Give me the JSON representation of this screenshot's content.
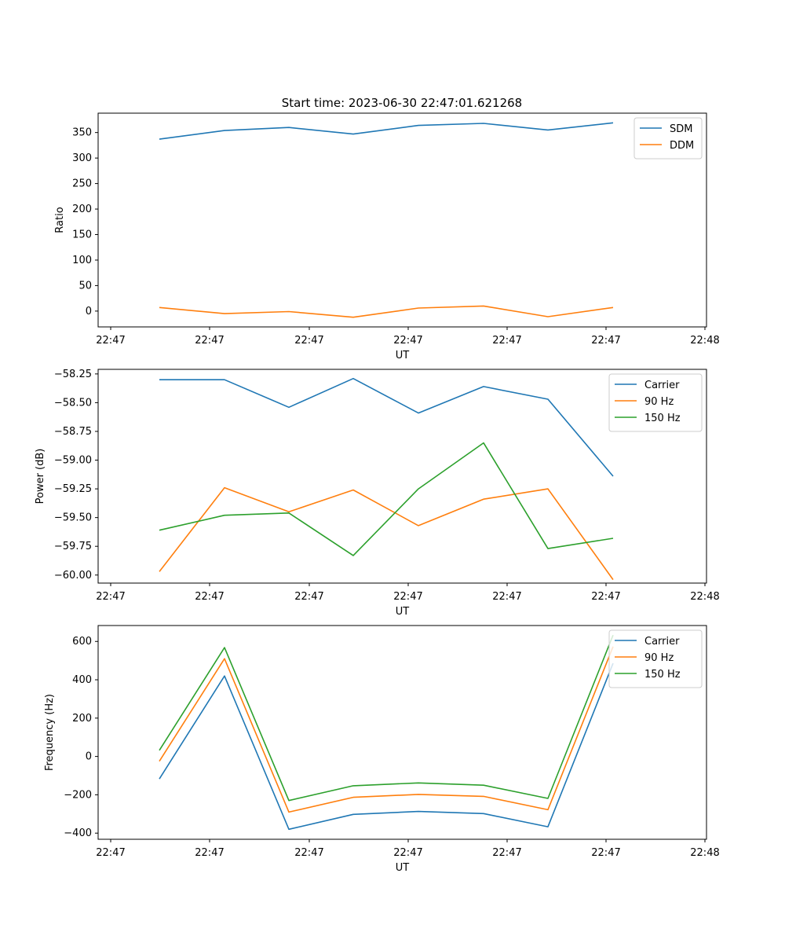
{
  "title": "Start time: 2023-06-30 22:47:01.621268",
  "colors": {
    "blue": "#1f77b4",
    "orange": "#ff7f0e",
    "green": "#2ca02c"
  },
  "chart_data": [
    {
      "type": "line",
      "xlabel": "UT",
      "ylabel": "Ratio",
      "x_tick_labels": [
        "22:47",
        "22:47",
        "22:47",
        "22:47",
        "22:47",
        "22:47",
        "22:48"
      ],
      "y_ticks": [
        0,
        50,
        100,
        150,
        200,
        250,
        300,
        350
      ],
      "y_tick_labels": [
        "0",
        "50",
        "100",
        "150",
        "200",
        "250",
        "300",
        "350"
      ],
      "ylim": [
        -31,
        388
      ],
      "legend_position": "top-right",
      "series": [
        {
          "name": "SDM",
          "color": "blue",
          "values": [
            337,
            354,
            360,
            347,
            364,
            368,
            355,
            369
          ]
        },
        {
          "name": "DDM",
          "color": "orange",
          "values": [
            7,
            -5,
            -1,
            -12,
            6,
            10,
            -11,
            7
          ]
        }
      ]
    },
    {
      "type": "line",
      "xlabel": "UT",
      "ylabel": "Power (dB)",
      "x_tick_labels": [
        "22:47",
        "22:47",
        "22:47",
        "22:47",
        "22:47",
        "22:47",
        "22:48"
      ],
      "y_ticks": [
        -60.0,
        -59.75,
        -59.5,
        -59.25,
        -59.0,
        -58.75,
        -58.5,
        -58.25
      ],
      "y_tick_labels": [
        "−60.00",
        "−59.75",
        "−59.50",
        "−59.25",
        "−59.00",
        "−58.75",
        "−58.50",
        "−58.25"
      ],
      "ylim": [
        -60.07,
        -58.21
      ],
      "legend_position": "top-right",
      "series": [
        {
          "name": "Carrier",
          "color": "blue",
          "values": [
            -58.3,
            -58.3,
            -58.54,
            -58.29,
            -58.59,
            -58.36,
            -58.47,
            -59.14
          ]
        },
        {
          "name": "90 Hz",
          "color": "orange",
          "values": [
            -59.97,
            -59.24,
            -59.45,
            -59.26,
            -59.57,
            -59.34,
            -59.25,
            -60.04
          ]
        },
        {
          "name": "150 Hz",
          "color": "green",
          "values": [
            -59.61,
            -59.48,
            -59.46,
            -59.83,
            -59.25,
            -58.85,
            -59.77,
            -59.68
          ]
        }
      ]
    },
    {
      "type": "line",
      "xlabel": "UT",
      "ylabel": "Frequency (Hz)",
      "x_tick_labels": [
        "22:47",
        "22:47",
        "22:47",
        "22:47",
        "22:47",
        "22:47",
        "22:48"
      ],
      "y_ticks": [
        -400,
        -200,
        0,
        200,
        400,
        600
      ],
      "y_tick_labels": [
        "−400",
        "−200",
        "0",
        "200",
        "400",
        "600"
      ],
      "ylim": [
        -432,
        683
      ],
      "legend_position": "top-right",
      "series": [
        {
          "name": "Carrier",
          "color": "blue",
          "values": [
            -117,
            420,
            -380,
            -302,
            -287,
            -298,
            -367,
            486
          ]
        },
        {
          "name": "90 Hz",
          "color": "orange",
          "values": [
            -25,
            510,
            -290,
            -213,
            -198,
            -208,
            -278,
            573
          ]
        },
        {
          "name": "150 Hz",
          "color": "green",
          "values": [
            32,
            568,
            -230,
            -153,
            -138,
            -150,
            -219,
            633
          ]
        }
      ]
    }
  ]
}
